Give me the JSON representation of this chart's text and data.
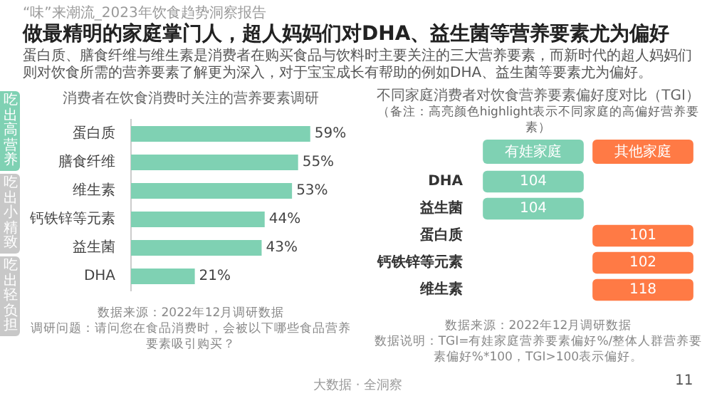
{
  "chart_data": [
    {
      "type": "bar",
      "orientation": "horizontal",
      "title": "消费者在饮食消费时关注的营养要素调研",
      "categories": [
        "蛋白质",
        "膳食纤维",
        "维生素",
        "钙铁锌等元素",
        "益生菌",
        "DHA"
      ],
      "values": [
        59,
        55,
        53,
        44,
        43,
        21
      ],
      "value_labels": [
        "59%",
        "55%",
        "53%",
        "44%",
        "43%",
        "21%"
      ],
      "color": "#7fd1b3",
      "annotations": [
        "“味”来潮流_2023年饮食趋势洞察报告",
        "做最精明的家庭掌门人，超人妈妈们对DHA、益生菌等营养要素尤为偏好",
        "蛋白质、膳食纤维与维生素是消费者在购买食品与饮料时主要关注的三大营养要素，而新时代的超人妈妈们则对饮食所需的营养要素了解更为深入，对于宝宝成长有帮助的例如DHA、益生菌等要素尤为偏好。",
        "吃出高营养",
        "吃出小精致",
        "吃出轻负担",
        "数据来源：2022年12月调研数据",
        "调研问题：请问您在食品消费时，会被以下哪些食品营养要素吸引购买？",
        "大数据 · 全洞察",
        "11"
      ]
    },
    {
      "type": "heatmap",
      "title": "不同家庭消费者对饮食营养要素偏好度对比（TGI）",
      "subtitle": "（备注：高亮颜色highlight表示不同家庭的高偏好营养要素）",
      "categories": [
        "有娃家庭",
        "其他家庭"
      ],
      "y_categories": [
        "DHA",
        "益生菌",
        "蛋白质",
        "钙铁锌等元素",
        "维生素"
      ],
      "cells": [
        [
          104,
          null
        ],
        [
          104,
          null
        ],
        [
          null,
          101
        ],
        [
          null,
          102
        ],
        [
          null,
          118
        ]
      ],
      "colors": [
        "#7fd1b3",
        "#ff7a45"
      ],
      "data_labels": true,
      "annotations": [
        "数据来源：2022年12月调研数据",
        "数据说明：TGI=有娃家庭营养要素偏好%/整体人群营养要素偏好%*100，TGI>100表示偏好。"
      ]
    }
  ]
}
